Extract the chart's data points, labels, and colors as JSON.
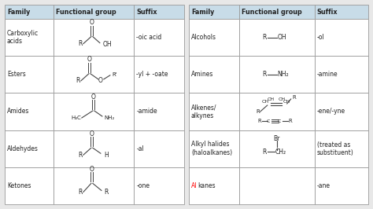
{
  "header_bg": "#c8dce8",
  "border_color": "#999999",
  "text_color": "#222222",
  "fig_bg": "#e8e8e8",
  "left_rows": [
    {
      "family": "Carboxylic\nacids",
      "suffix": "-oic acid"
    },
    {
      "family": "Esters",
      "suffix": "-yl + -oate"
    },
    {
      "family": "Amides",
      "suffix": "-amide"
    },
    {
      "family": "Aldehydes",
      "suffix": "-al"
    },
    {
      "family": "Ketones",
      "suffix": "-one"
    }
  ],
  "right_rows": [
    {
      "family": "Alcohols",
      "suffix": "-ol"
    },
    {
      "family": "Amines",
      "suffix": "-amine"
    },
    {
      "family": "Alkenes/\nalkynes",
      "suffix": "-ene/-yne"
    },
    {
      "family": "Alkyl halides\n(haloalkanes)",
      "suffix": "(treated as\nsubstituent)"
    },
    {
      "family": "Alkanes",
      "suffix": "-ane",
      "family_red": true
    }
  ]
}
